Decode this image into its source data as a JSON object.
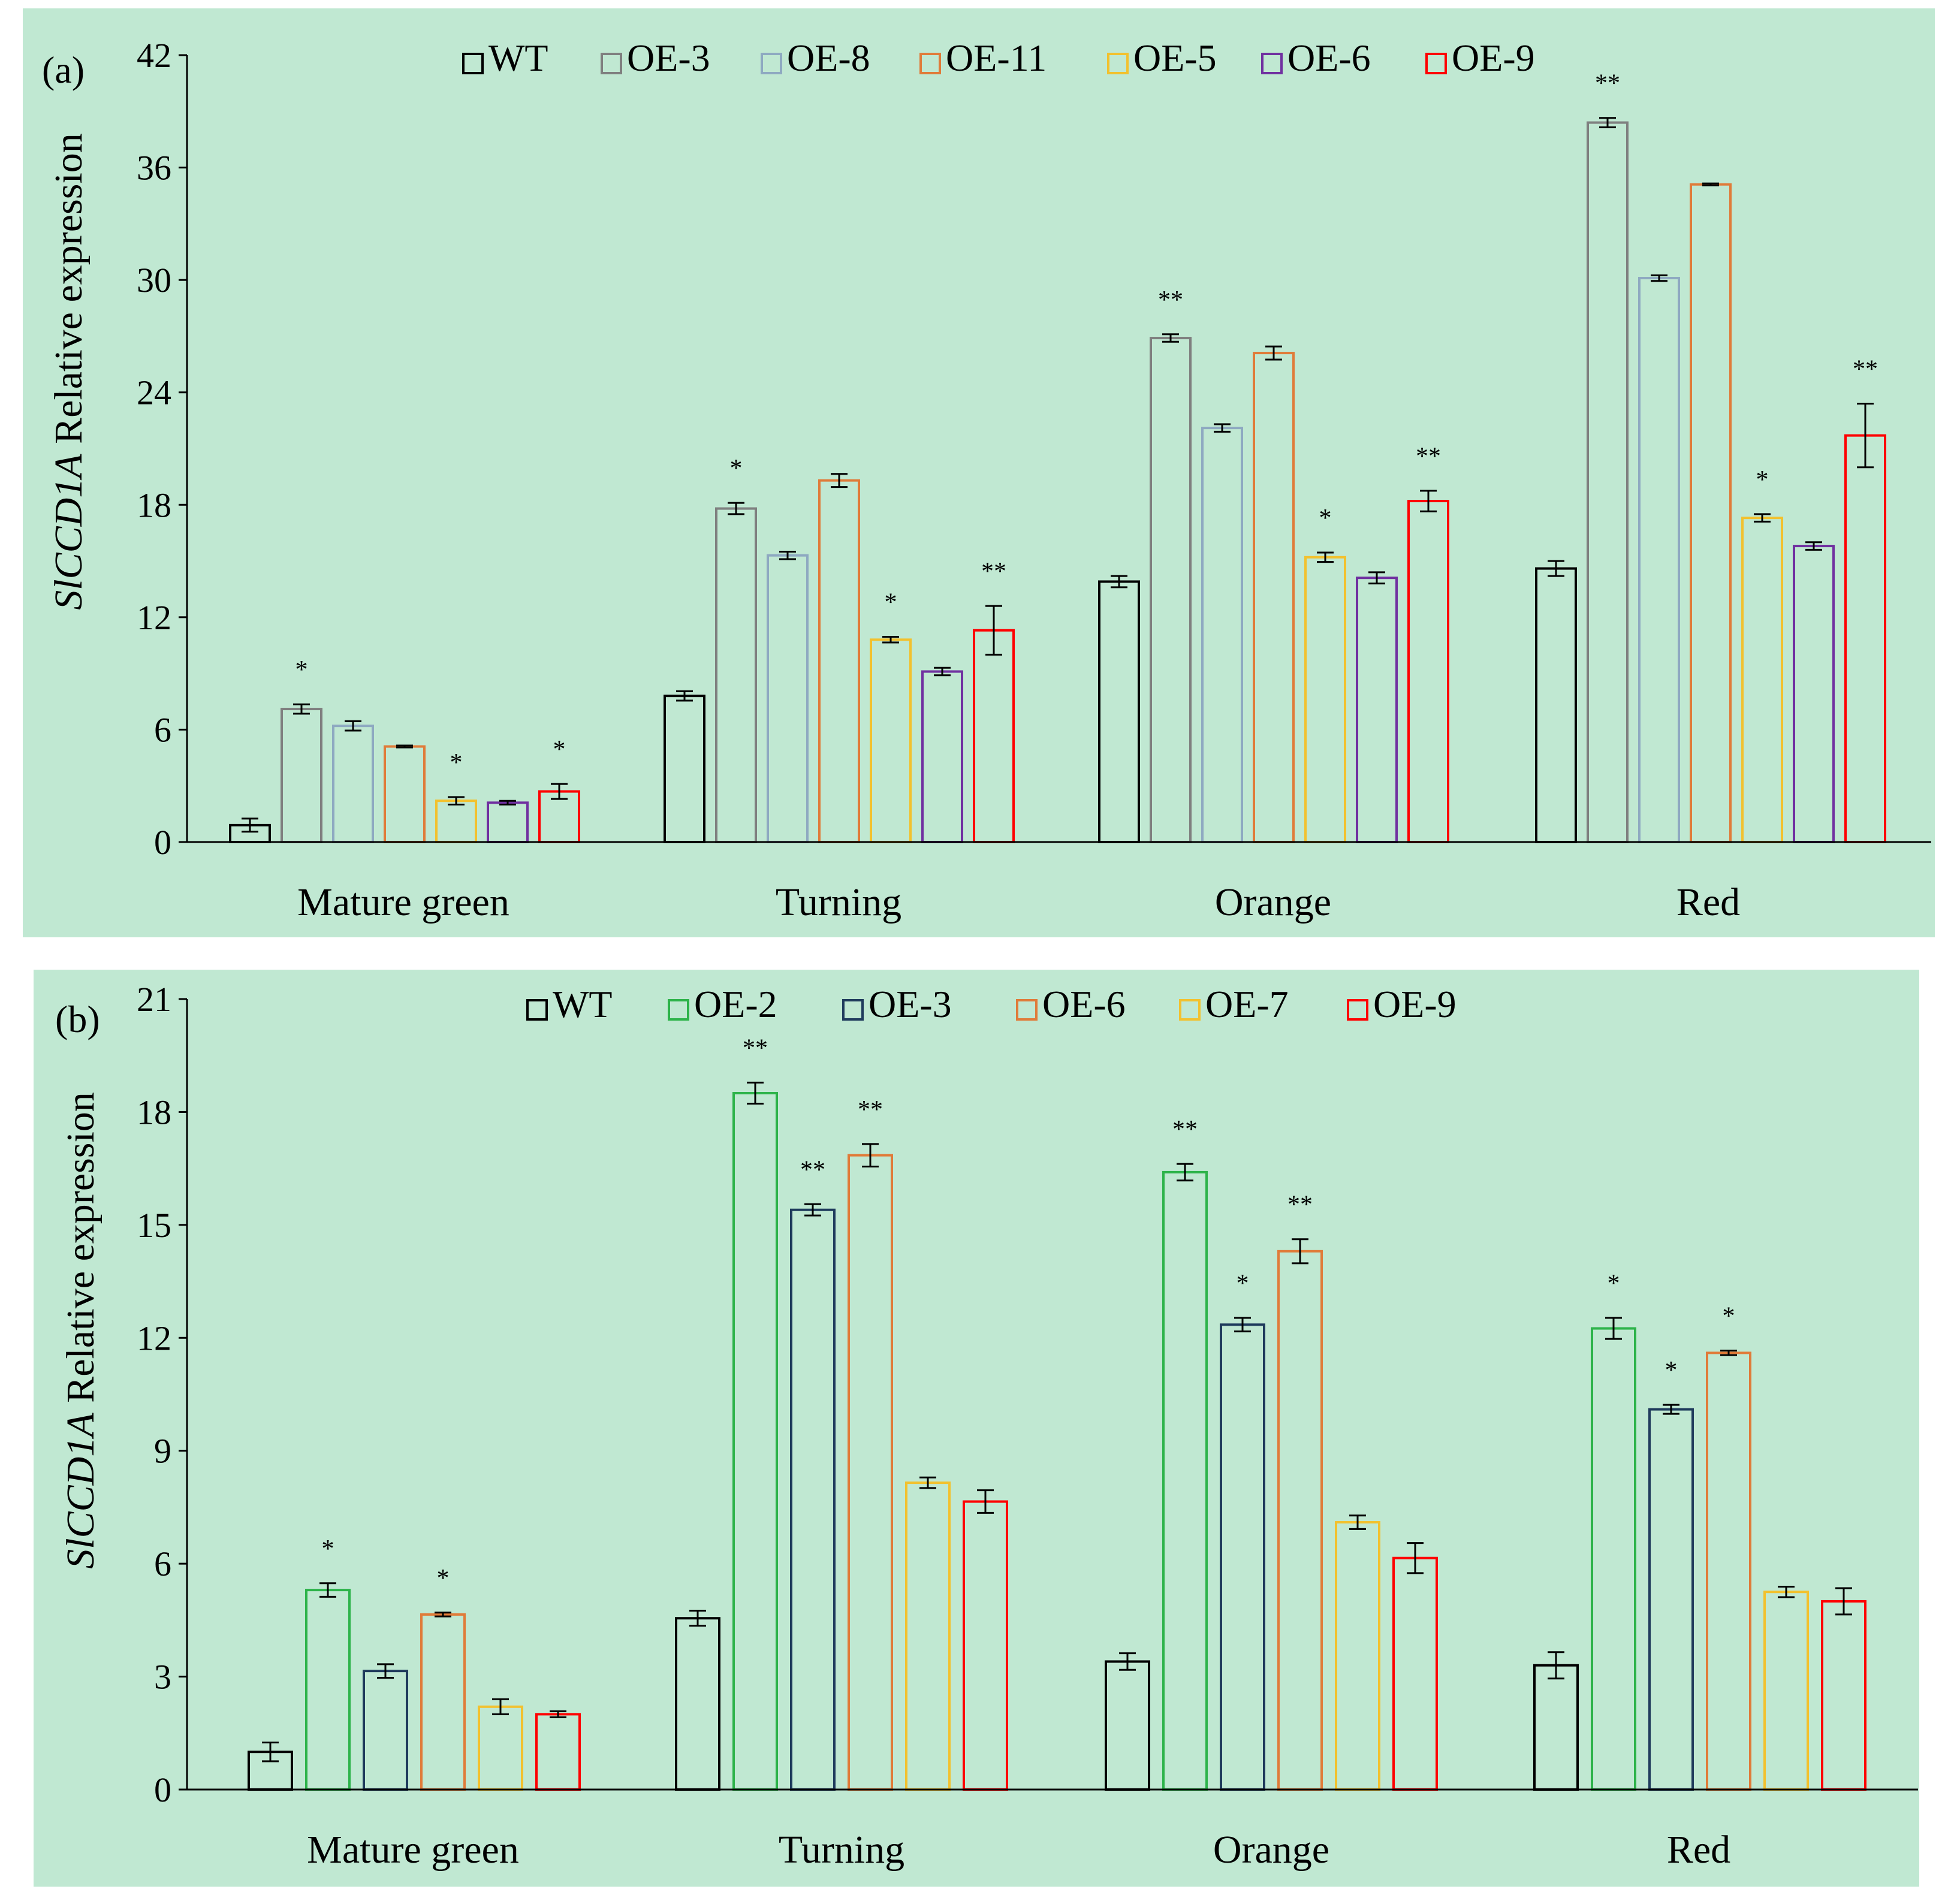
{
  "chart_data": [
    {
      "type": "bar",
      "panel_label": "(a)",
      "ylabel_gene": "SlCCD1A",
      "ylabel_rest": " Relative expression",
      "ylim": [
        0,
        42
      ],
      "yticks": [
        "0",
        "6",
        "12",
        "18",
        "24",
        "30",
        "36",
        "42"
      ],
      "ytick_values": [
        0,
        6,
        12,
        18,
        24,
        30,
        36,
        42
      ],
      "categories": [
        "Mature green",
        "Turning",
        "Orange",
        "Red"
      ],
      "legend_position": "top",
      "series": [
        {
          "name": "WT",
          "color": "#000000",
          "values": [
            0.9,
            7.8,
            13.9,
            14.6
          ],
          "errors": [
            0.35,
            0.25,
            0.3,
            0.4
          ],
          "sig": [
            "",
            "",
            "",
            ""
          ]
        },
        {
          "name": "OE-3",
          "color": "#7f7f7f",
          "values": [
            7.1,
            17.8,
            26.9,
            38.4
          ],
          "errors": [
            0.25,
            0.3,
            0.2,
            0.25
          ],
          "sig": [
            "*",
            "*",
            "**",
            "**"
          ]
        },
        {
          "name": "OE-8",
          "color": "#8ea9c1",
          "values": [
            6.2,
            15.3,
            22.1,
            30.1
          ],
          "errors": [
            0.25,
            0.2,
            0.2,
            0.15
          ],
          "sig": [
            "",
            "",
            "",
            ""
          ]
        },
        {
          "name": "OE-11",
          "color": "#e07b39",
          "values": [
            5.1,
            19.3,
            26.1,
            35.1
          ],
          "errors": [
            0.05,
            0.35,
            0.35,
            0.05
          ],
          "sig": [
            "",
            "",
            "",
            ""
          ]
        },
        {
          "name": "OE-5",
          "color": "#f2c12e",
          "values": [
            2.2,
            10.8,
            15.2,
            17.3
          ],
          "errors": [
            0.2,
            0.15,
            0.25,
            0.2
          ],
          "sig": [
            "*",
            "*",
            "*",
            "*"
          ]
        },
        {
          "name": "OE-6",
          "color": "#7030a0",
          "values": [
            2.1,
            9.1,
            14.1,
            15.8
          ],
          "errors": [
            0.1,
            0.2,
            0.3,
            0.2
          ],
          "sig": [
            "",
            "",
            "",
            ""
          ]
        },
        {
          "name": "OE-9",
          "color": "#ff0000",
          "values": [
            2.7,
            11.3,
            18.2,
            21.7
          ],
          "errors": [
            0.4,
            1.3,
            0.55,
            1.7
          ],
          "sig": [
            "*",
            "**",
            "**",
            "**"
          ]
        }
      ]
    },
    {
      "type": "bar",
      "panel_label": "(b)",
      "ylabel_gene": "SlCCD1A",
      "ylabel_rest": " Relative expression",
      "ylim": [
        0,
        21
      ],
      "yticks": [
        "0",
        "3",
        "6",
        "9",
        "12",
        "15",
        "18",
        "21"
      ],
      "ytick_values": [
        0,
        3,
        6,
        9,
        12,
        15,
        18,
        21
      ],
      "categories": [
        "Mature green",
        "Turning",
        "Orange",
        "Red"
      ],
      "legend_position": "top",
      "series": [
        {
          "name": "WT",
          "color": "#000000",
          "values": [
            1.0,
            4.55,
            3.4,
            3.3
          ],
          "errors": [
            0.25,
            0.2,
            0.22,
            0.35
          ],
          "sig": [
            "",
            "",
            "",
            ""
          ]
        },
        {
          "name": "OE-2",
          "color": "#2db34a",
          "values": [
            5.3,
            18.5,
            16.4,
            12.25
          ],
          "errors": [
            0.18,
            0.28,
            0.22,
            0.28
          ],
          "sig": [
            "*",
            "**",
            "**",
            "*"
          ]
        },
        {
          "name": "OE-3",
          "color": "#1f3b5c",
          "values": [
            3.15,
            15.4,
            12.35,
            10.1
          ],
          "errors": [
            0.18,
            0.15,
            0.18,
            0.12
          ],
          "sig": [
            "",
            "**",
            "*",
            "*"
          ]
        },
        {
          "name": "OE-6",
          "color": "#e07b39",
          "values": [
            4.65,
            16.85,
            14.3,
            11.6
          ],
          "errors": [
            0.05,
            0.3,
            0.32,
            0.06
          ],
          "sig": [
            "*",
            "**",
            "**",
            "*"
          ]
        },
        {
          "name": "OE-7",
          "color": "#f2c12e",
          "values": [
            2.2,
            8.15,
            7.1,
            5.25
          ],
          "errors": [
            0.2,
            0.14,
            0.18,
            0.14
          ],
          "sig": [
            "",
            "",
            "",
            ""
          ]
        },
        {
          "name": "OE-9",
          "color": "#ff0000",
          "values": [
            2.0,
            7.65,
            6.15,
            5.0
          ],
          "errors": [
            0.08,
            0.3,
            0.4,
            0.35
          ],
          "sig": [
            "",
            "",
            "",
            ""
          ]
        }
      ]
    }
  ]
}
